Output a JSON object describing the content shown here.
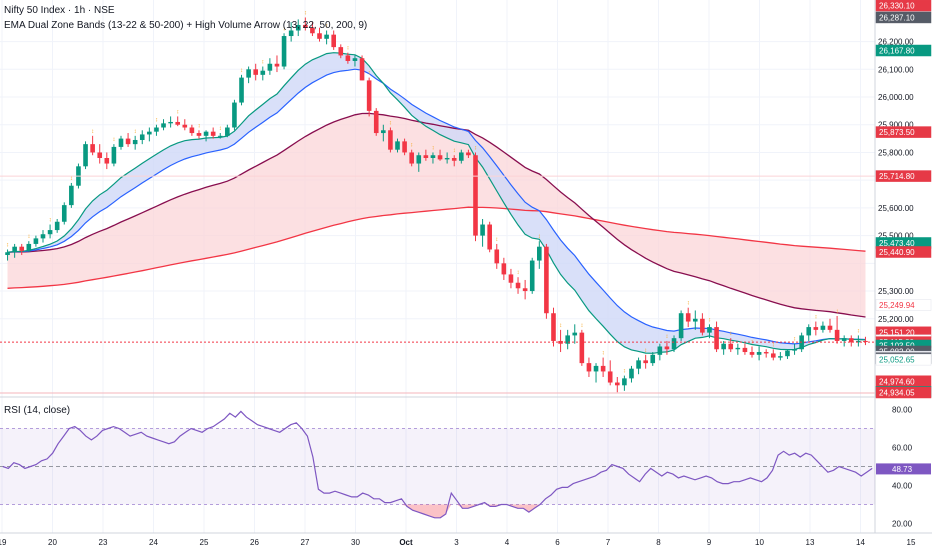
{
  "header": {
    "title": "Nifty 50 Index · 1h · NSE",
    "indicator": "EMA Dual Zone Bands (13-22 & 50-200) + High Volume Arrow (13, 22, 50, 200, 9)",
    "rsi_label": "RSI (14, close)",
    "currency": "INR"
  },
  "colors": {
    "up": "#089981",
    "down": "#f23645",
    "ema13": "#089981",
    "ema22": "#2962ff",
    "ema50": "#880e4f",
    "ema200": "#f23645",
    "fast_band": "#cfd8f7",
    "slow_band": "#fbd3d6",
    "rsi": "#7e57c2"
  },
  "chart_data": [
    {
      "type": "candlestick",
      "title": "Nifty 50 Index · 1h · NSE",
      "x_ticks": [
        "19",
        "20",
        "23",
        "24",
        "25",
        "26",
        "27",
        "30",
        "Oct",
        "3",
        "4",
        "6",
        "7",
        "8",
        "9",
        "10",
        "13",
        "14",
        "15"
      ],
      "y_ticks": [
        25200,
        25300,
        25400,
        25500,
        25600,
        25700,
        25800,
        25900,
        26000,
        26100,
        26200
      ],
      "y_tick_labels": [
        "25,200.00",
        "25,300.00",
        "",
        "25,500.00",
        "25,600.00",
        "",
        "25,800.00",
        "25,900.00",
        "26,000.00",
        "26,100.00",
        "26,200.00"
      ],
      "ylim": [
        24925,
        26350
      ],
      "candles": [
        [
          25430,
          25450,
          25410,
          25440
        ],
        [
          25440,
          25470,
          25420,
          25460
        ],
        [
          25460,
          25470,
          25430,
          25445
        ],
        [
          25445,
          25480,
          25440,
          25470
        ],
        [
          25470,
          25500,
          25460,
          25490
        ],
        [
          25490,
          25520,
          25475,
          25505
        ],
        [
          25505,
          25540,
          25490,
          25520
        ],
        [
          25520,
          25560,
          25510,
          25550
        ],
        [
          25550,
          25620,
          25540,
          25610
        ],
        [
          25610,
          25690,
          25600,
          25680
        ],
        [
          25680,
          25760,
          25670,
          25750
        ],
        [
          25750,
          25840,
          25740,
          25830
        ],
        [
          25830,
          25860,
          25790,
          25800
        ],
        [
          25800,
          25830,
          25760,
          25780
        ],
        [
          25780,
          25800,
          25740,
          25760
        ],
        [
          25760,
          25830,
          25750,
          25820
        ],
        [
          25820,
          25860,
          25810,
          25850
        ],
        [
          25850,
          25870,
          25820,
          25830
        ],
        [
          25830,
          25860,
          25810,
          25845
        ],
        [
          25845,
          25880,
          25830,
          25865
        ],
        [
          25865,
          25890,
          25840,
          25875
        ],
        [
          25875,
          25900,
          25860,
          25890
        ],
        [
          25890,
          25920,
          25880,
          25905
        ],
        [
          25905,
          25930,
          25890,
          25910
        ],
        [
          25910,
          25930,
          25895,
          25900
        ],
        [
          25900,
          25920,
          25880,
          25890
        ],
        [
          25890,
          25900,
          25860,
          25870
        ],
        [
          25870,
          25880,
          25850,
          25860
        ],
        [
          25860,
          25880,
          25840,
          25875
        ],
        [
          25875,
          25890,
          25850,
          25860
        ],
        [
          25860,
          25870,
          25850,
          25860
        ],
        [
          25860,
          25900,
          25855,
          25890
        ],
        [
          25890,
          25990,
          25880,
          25980
        ],
        [
          25980,
          26080,
          25970,
          26070
        ],
        [
          26070,
          26110,
          26050,
          26100
        ],
        [
          26100,
          26120,
          26060,
          26080
        ],
        [
          26080,
          26110,
          26060,
          26095
        ],
        [
          26095,
          26140,
          26080,
          26120
        ],
        [
          26120,
          26150,
          26090,
          26110
        ],
        [
          26110,
          26230,
          26100,
          26220
        ],
        [
          26220,
          26270,
          26200,
          26240
        ],
        [
          26240,
          26280,
          26220,
          26260
        ],
        [
          26260,
          26287,
          26240,
          26250
        ],
        [
          26250,
          26270,
          26220,
          26230
        ],
        [
          26230,
          26250,
          26200,
          26210
        ],
        [
          26210,
          26240,
          26190,
          26225
        ],
        [
          26225,
          26240,
          26170,
          26180
        ],
        [
          26180,
          26190,
          26140,
          26150
        ],
        [
          26150,
          26160,
          26120,
          26130
        ],
        [
          26130,
          26150,
          26110,
          26140
        ],
        [
          26140,
          26150,
          26060,
          26060
        ],
        [
          26060,
          26070,
          25930,
          25950
        ],
        [
          25950,
          25960,
          25860,
          25870
        ],
        [
          25870,
          25900,
          25840,
          25880
        ],
        [
          25880,
          25890,
          25800,
          25810
        ],
        [
          25810,
          25850,
          25800,
          25840
        ],
        [
          25840,
          25850,
          25790,
          25800
        ],
        [
          25800,
          25810,
          25750,
          25760
        ],
        [
          25760,
          25800,
          25730,
          25790
        ],
        [
          25790,
          25810,
          25770,
          25780
        ],
        [
          25780,
          25800,
          25760,
          25790
        ],
        [
          25790,
          25810,
          25770,
          25775
        ],
        [
          25775,
          25800,
          25760,
          25780
        ],
        [
          25780,
          25790,
          25750,
          25770
        ],
        [
          25770,
          25810,
          25760,
          25800
        ],
        [
          25800,
          25810,
          25780,
          25790
        ],
        [
          25790,
          25800,
          25480,
          25500
        ],
        [
          25500,
          25560,
          25460,
          25540
        ],
        [
          25540,
          25550,
          25440,
          25450
        ],
        [
          25450,
          25470,
          25380,
          25400
        ],
        [
          25400,
          25420,
          25340,
          25360
        ],
        [
          25360,
          25380,
          25310,
          25330
        ],
        [
          25330,
          25350,
          25290,
          25310
        ],
        [
          25310,
          25340,
          25270,
          25300
        ],
        [
          25300,
          25420,
          25290,
          25410
        ],
        [
          25410,
          25480,
          25380,
          25460
        ],
        [
          25460,
          25470,
          25200,
          25220
        ],
        [
          25220,
          25240,
          25100,
          25120
        ],
        [
          25120,
          25160,
          25080,
          25110
        ],
        [
          25110,
          25160,
          25090,
          25140
        ],
        [
          25140,
          25180,
          25110,
          25150
        ],
        [
          25150,
          25160,
          25030,
          25040
        ],
        [
          25040,
          25060,
          24990,
          25010
        ],
        [
          25010,
          25040,
          24970,
          25030
        ],
        [
          25030,
          25060,
          24990,
          25010
        ],
        [
          25010,
          25050,
          24960,
          24970
        ],
        [
          24970,
          24990,
          24935,
          24960
        ],
        [
          24960,
          24995,
          24940,
          24985
        ],
        [
          24985,
          25030,
          24970,
          25020
        ],
        [
          25020,
          25060,
          25000,
          25050
        ],
        [
          25050,
          25070,
          25020,
          25040
        ],
        [
          25040,
          25080,
          25030,
          25070
        ],
        [
          25070,
          25110,
          25050,
          25100
        ],
        [
          25100,
          25120,
          25070,
          25090
        ],
        [
          25090,
          25140,
          25080,
          25130
        ],
        [
          25130,
          25230,
          25120,
          25220
        ],
        [
          25220,
          25240,
          25170,
          25190
        ],
        [
          25190,
          25230,
          25160,
          25200
        ],
        [
          25200,
          25220,
          25140,
          25150
        ],
        [
          25150,
          25180,
          25130,
          25170
        ],
        [
          25170,
          25190,
          25080,
          25090
        ],
        [
          25090,
          25120,
          25070,
          25110
        ],
        [
          25110,
          25130,
          25080,
          25090
        ],
        [
          25090,
          25110,
          25070,
          25095
        ],
        [
          25095,
          25110,
          25070,
          25080
        ],
        [
          25080,
          25100,
          25060,
          25070
        ],
        [
          25070,
          25100,
          25050,
          25080
        ],
        [
          25080,
          25090,
          25060,
          25075
        ],
        [
          25075,
          25090,
          25050,
          25060
        ],
        [
          25060,
          25080,
          25050,
          25065
        ],
        [
          25065,
          25090,
          25055,
          25085
        ],
        [
          25085,
          25110,
          25070,
          25090
        ],
        [
          25090,
          25150,
          25080,
          25140
        ],
        [
          25140,
          25180,
          25120,
          25170
        ],
        [
          25170,
          25190,
          25140,
          25160
        ],
        [
          25160,
          25190,
          25150,
          25175
        ],
        [
          25175,
          25200,
          25150,
          25160
        ],
        [
          25160,
          25210,
          25110,
          25120
        ],
        [
          25120,
          25140,
          25100,
          25130
        ],
        [
          25130,
          25140,
          25100,
          25115
        ],
        [
          25115,
          25140,
          25100,
          25120
        ],
        [
          25120,
          25135,
          25105,
          25116
        ]
      ],
      "last_price": 25115.8,
      "price_labels": [
        {
          "text": "26,330.10",
          "bg": "#e63946",
          "fg": "#ffffff",
          "price": 26330.1
        },
        {
          "text": "26,287.10",
          "bg": "#555b66",
          "fg": "#ffffff",
          "price": 26287.1
        },
        {
          "text": "26,167.80",
          "bg": "#089981",
          "fg": "#ffffff",
          "price": 26167.8
        },
        {
          "text": "25,873.50",
          "bg": "#e63946",
          "fg": "#ffffff",
          "price": 25873.5
        },
        {
          "text": "25,714.80",
          "bg": "#e63946",
          "fg": "#ffffff",
          "price": 25714.8
        },
        {
          "text": "25,473.40",
          "bg": "#089981",
          "fg": "#ffffff",
          "price": 25473.4
        },
        {
          "text": "25,440.90",
          "bg": "#e63946",
          "fg": "#ffffff",
          "price": 25440.9
        },
        {
          "text": "25,249.94",
          "bg": "#ffffff",
          "fg": "#f23645",
          "price": 25249.94
        },
        {
          "text": "25,151.20",
          "bg": "#e63946",
          "fg": "#ffffff",
          "price": 25151.2
        },
        {
          "text": "25,122.16",
          "bg": "#ffffff",
          "fg": "#880e4f",
          "price": 25122.16
        },
        {
          "text": "25,115.80",
          "bg": "#e63946",
          "fg": "#ffffff",
          "price": 25115.8
        },
        {
          "text": "25,103.50",
          "bg": "#089981",
          "fg": "#ffffff",
          "price": 25103.5
        },
        {
          "text": "25,082.00",
          "bg": "#555b66",
          "fg": "#ffffff",
          "price": 25082.0
        },
        {
          "text": "25,063.15",
          "bg": "#ffffff",
          "fg": "#089981",
          "price": 25063.15
        },
        {
          "text": "25,060.37",
          "bg": "#ffffff",
          "fg": "#2962ff",
          "price": 25060.37
        },
        {
          "text": "25,057.70",
          "bg": "#555b66",
          "fg": "#ffffff",
          "price": 25057.7
        },
        {
          "text": "25,052.65",
          "bg": "#ffffff",
          "fg": "#089981",
          "price": 25052.65
        },
        {
          "text": "24,974.60",
          "bg": "#e63946",
          "fg": "#ffffff",
          "price": 24974.6
        },
        {
          "text": "24,936.60",
          "bg": "#089981",
          "fg": "#ffffff",
          "price": 24936.6
        },
        {
          "text": "24,934.05",
          "bg": "#e63946",
          "fg": "#ffffff",
          "price": 24934.05
        }
      ]
    },
    {
      "type": "line",
      "title": "RSI (14, close)",
      "y_ticks": [
        20,
        40,
        60,
        80
      ],
      "y_tick_labels": [
        "20.00",
        "40.00",
        "60.00",
        "80.00"
      ],
      "ylim": [
        15,
        85
      ],
      "bands": [
        30,
        70
      ],
      "midline": 50,
      "current_value": 48.73,
      "current_label": "48.73",
      "values": [
        50,
        49,
        52,
        51,
        49,
        50,
        51,
        53,
        54,
        57,
        62,
        66,
        70,
        71,
        69,
        66,
        64,
        66,
        69,
        70,
        71,
        70,
        68,
        66,
        67,
        68,
        66,
        65,
        64,
        63,
        62,
        63,
        66,
        68,
        70,
        69,
        68,
        70,
        71,
        73,
        75,
        78,
        76,
        79,
        76,
        74,
        72,
        71,
        70,
        69,
        68,
        70,
        72,
        73,
        70,
        66,
        55,
        38,
        36,
        36,
        37,
        36,
        35,
        34,
        34,
        36,
        35,
        33,
        33,
        31,
        31,
        32,
        33,
        29,
        27,
        26,
        25,
        24,
        23,
        23,
        25,
        36,
        32,
        28,
        28,
        29,
        30,
        31,
        29,
        29,
        30,
        30,
        29,
        28,
        28,
        26,
        28,
        30,
        33,
        35,
        38,
        39,
        39,
        41,
        42,
        43,
        44,
        45,
        47,
        48,
        51,
        50,
        49,
        46,
        44,
        42,
        46,
        49,
        47,
        45,
        47,
        46,
        44,
        45,
        44,
        43,
        44,
        45,
        44,
        42,
        41,
        41,
        42,
        42,
        43,
        44,
        43,
        42,
        44,
        48,
        56,
        58,
        56,
        57,
        55,
        57,
        56,
        53,
        50,
        47,
        48,
        50,
        49,
        48,
        47,
        45,
        47,
        49
      ]
    }
  ]
}
